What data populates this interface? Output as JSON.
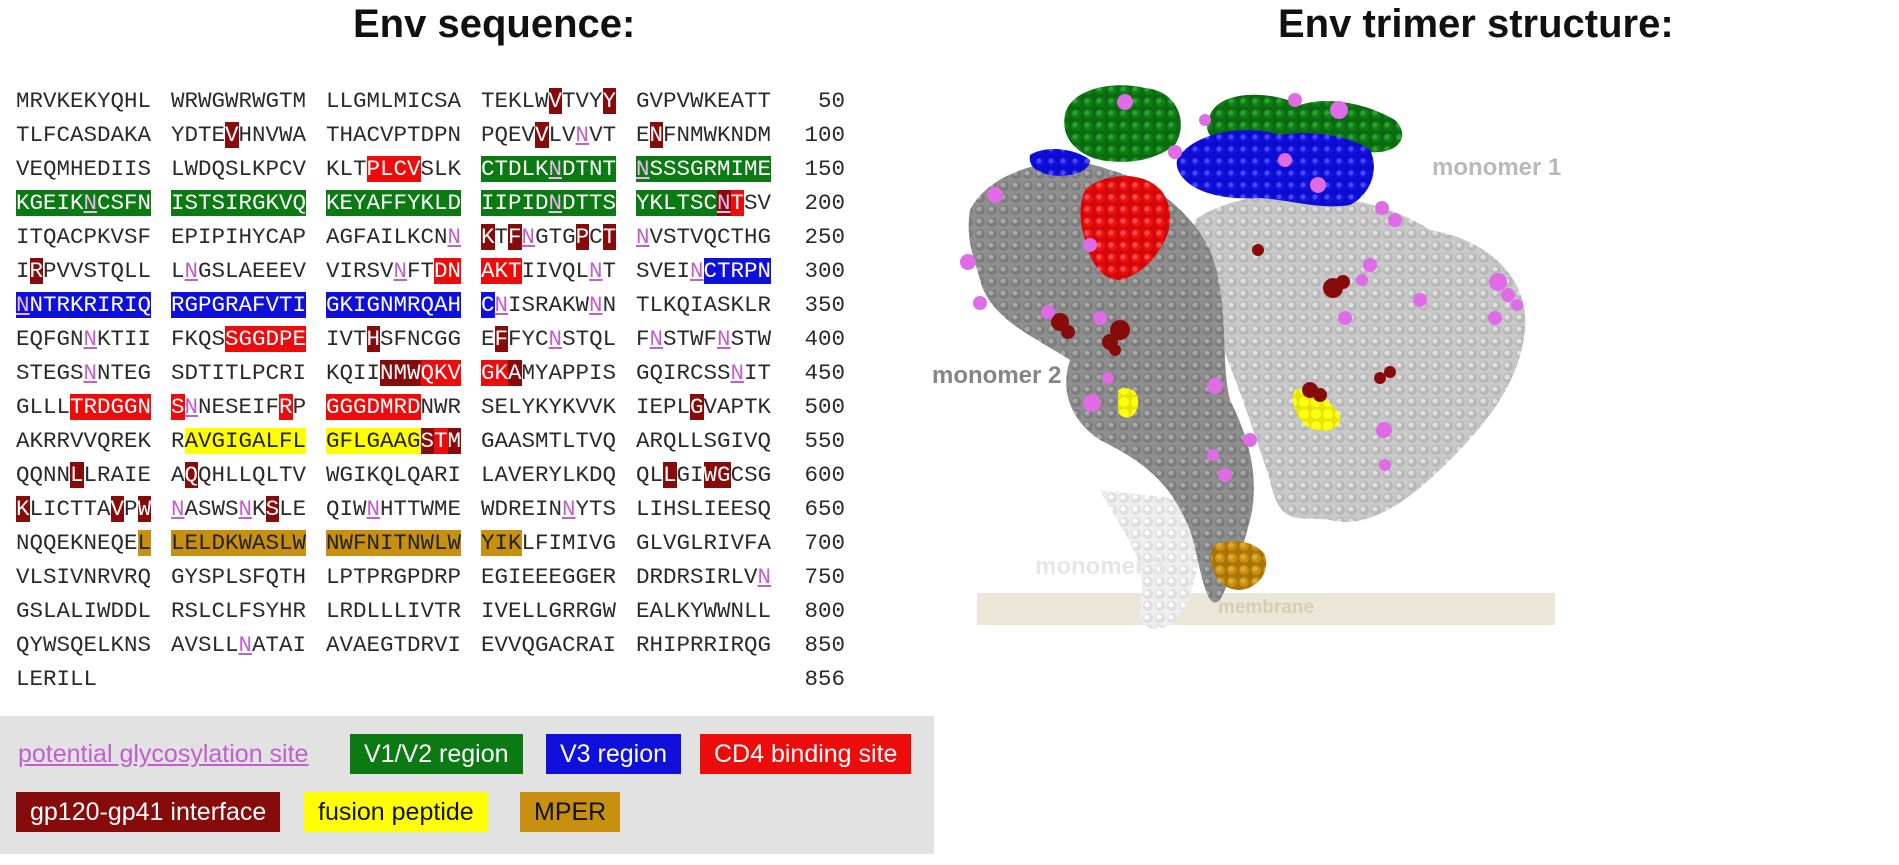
{
  "titles": {
    "sequence": "Env sequence:",
    "structure": "Env trimer structure:"
  },
  "sequence_rows": [
    {
      "num": "50",
      "blocks": [
        "MRVKEKYQHL",
        "WRWGWRWGTM",
        "LLGMLMICSA",
        "TEKLW[d:V]TVY[d:Y]",
        "GVPVWKEATT"
      ]
    },
    {
      "num": "100",
      "blocks": [
        "TLFCASDAKA",
        "YDTE[d:V]HNVWA",
        "THACVPTDPN",
        "PQEV[d:V]LV[u:N]VT",
        "E[d:N]FNMWKNDM"
      ]
    },
    {
      "num": "150",
      "blocks": [
        "VEQMHEDIIS",
        "LWDQSLKPCV",
        "KLT[r:PLCV]SLK",
        "[g:CTDLK][gu:N][g:DTNT]",
        "[gu:N][g:SSSGRMIME]"
      ]
    },
    {
      "num": "200",
      "blocks": [
        "[g:KGEIK][gu:N][g:CSFN]",
        "[g:ISTSIRGKVQ]",
        "[g:KEYAFFYKLD]",
        "[g:IIPID][gu:N][g:DTTS]",
        "[g:YKLTSC][du:N][r:T]SV"
      ]
    },
    {
      "num": "250",
      "blocks": [
        "ITQACPKVSF",
        "EPIPIHYCAP",
        "AGFAILKCN[u:N]",
        "[d:K]T[d:F][u:N]GTG[d:P]C[d:T]",
        "[u:N]VSTVQCTHG"
      ]
    },
    {
      "num": "300",
      "blocks": [
        "I[d:R]PVVSTQLL",
        "L[u:N]GSLAEEEV",
        "VIRSV[u:N]FT[r:DN]",
        "[r:AKT]IIVQL[u:N]T",
        "SVEI[u:N][b:CTRPN]"
      ]
    },
    {
      "num": "350",
      "blocks": [
        "[bu:N][b:NTRKRIRIQ]",
        "[b:RGPGRAFVTI]",
        "[b:GKIGNMRQAH]",
        "[b:C][u:N]ISRAKW[u:N]N",
        "TLKQIASKLR"
      ]
    },
    {
      "num": "400",
      "blocks": [
        "EQFGN[u:N]KTII",
        "FKQS[r:SGGDPE]",
        "IVT[d:H]SFNCGG",
        "E[d:F]FYC[u:N]STQL",
        "F[u:N]STWF[u:N]STW"
      ]
    },
    {
      "num": "450",
      "blocks": [
        "STEGS[u:N]NTEG",
        "SDTITLPCRI",
        "KQII[d:NM][d:W][r:QKV]",
        "[r:GK][d:A]MYAPPIS",
        "GQIRCSS[u:N]IT"
      ]
    },
    {
      "num": "500",
      "blocks": [
        "GLLL[r:TRDGGN]",
        "[r:S][u:N]NESEIF[r:R]P",
        "[r:GGGDMRD]NWR",
        "SELYKYKVVK",
        "IEPL[d:G]VAPTK"
      ]
    },
    {
      "num": "550",
      "blocks": [
        "AKRRVVQREK",
        "R[y:AVGIGALFL]",
        "[y:GFLGAAG][d:S][r:T][d:M]",
        "GAASMTLTVQ",
        "ARQLLSGIVQ"
      ]
    },
    {
      "num": "600",
      "blocks": [
        "QQNN[d:L]LRAIE",
        "A[d:Q]QHLLQLTV",
        "WGIKQLQARI",
        "LAVERYLKDQ",
        "QL[d:L]GI[d:WG]CSG"
      ]
    },
    {
      "num": "650",
      "blocks": [
        "[d:K]LICTTA[d:V]P[d:W]",
        "[u:N]ASWS[u:N]K[d:S]LE",
        "QIW[u:N]HTTWME",
        "WDREIN[u:N]YTS",
        "LIHSLIEESQ"
      ]
    },
    {
      "num": "700",
      "blocks": [
        "NQQEKNEQE[o:L]",
        "[o:LELDKWASLW]",
        "[o:NWFNITNWLW]",
        "[o:YIK]LFIMIVG",
        "GLVGLRIVFA"
      ]
    },
    {
      "num": "750",
      "blocks": [
        "VLSIVNRVRQ",
        "GYSPLSFQTH",
        "LPTPRGPDRP",
        "EGIEEEGGER",
        "DRDRSIRLV[u:N]"
      ]
    },
    {
      "num": "800",
      "blocks": [
        "GSLALIWDDL",
        "RSLCLFSYHR",
        "LRDLLLIVTR",
        "IVELLGRRGW",
        "EALKYWWNLL"
      ]
    },
    {
      "num": "850",
      "blocks": [
        "QYWSQELKNS",
        "AVSLL[u:N]ATAI",
        "AVAEGTDRVI",
        "EVVQGACRAI",
        "RHIPRRIRQG"
      ]
    },
    {
      "num": "856",
      "blocks": [
        "LERILL"
      ]
    }
  ],
  "legend": {
    "glycosylation": "potential glycosylation site",
    "v1v2": "V1/V2 region",
    "v3": "V3 region",
    "cd4": "CD4 binding site",
    "interface": "gp120-gp41 interface",
    "fusion": "fusion peptide",
    "mper": "MPER"
  },
  "colors": {
    "v1v2": "#0b7a12",
    "v3": "#1010dd",
    "cd4": "#ee0b0b",
    "interface": "#880b0b",
    "fusion": "#ffff00",
    "mper": "#c89010",
    "glycosylation": "#c15fcf",
    "monomer1": "#c9c9c9",
    "monomer2": "#8f8f8f",
    "monomer3": "#eeeeee",
    "membrane": "#ece6d8"
  },
  "structure": {
    "monomer1": "monomer 1",
    "monomer2": "monomer 2",
    "monomer3": "monomer 3",
    "membrane": "membrane"
  }
}
